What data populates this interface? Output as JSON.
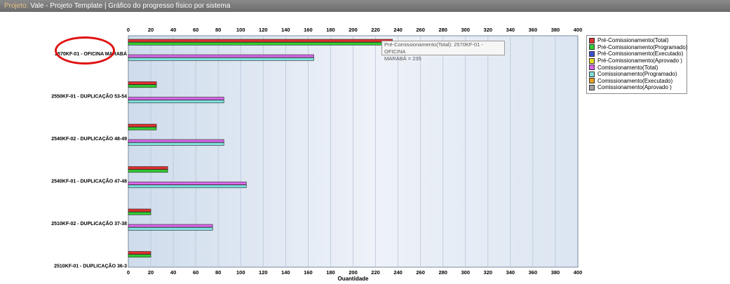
{
  "header": {
    "label": "Projeto:",
    "title": "Vale - Projeto Template | Gráfico do progresso físico por sistema"
  },
  "tooltip": {
    "line1": "Pré-Comissionamento(Total): 2570KF-01 - OFICINA",
    "line2": "MARABÁ = 235"
  },
  "chart_data": {
    "type": "bar",
    "orientation": "horizontal",
    "xlabel": "Quantidade",
    "xlim": [
      0,
      400
    ],
    "xticks": [
      0,
      20,
      40,
      60,
      80,
      100,
      120,
      140,
      160,
      180,
      200,
      220,
      240,
      260,
      280,
      300,
      320,
      340,
      360,
      380,
      400
    ],
    "grid": true,
    "legend_position": "right",
    "categories": [
      "2570KF-01 - OFICINA MARABÁ",
      "2550KF-01 - DUPLICAÇÃO 53-54",
      "2540KF-02 - DUPLICAÇÃO 48-49",
      "2540KF-01 - DUPLICAÇÃO 47-48",
      "2510KF-02 - DUPLICAÇÃO 37-38",
      "2510KF-01 - DUPLICAÇÃO 36-3"
    ],
    "series": [
      {
        "name": "Pré-Comissionamento(Total)",
        "color": "#e03030",
        "values": [
          235,
          25,
          25,
          35,
          20,
          20
        ]
      },
      {
        "name": "Pré-Comissionamento(Programado)",
        "color": "#33cc33",
        "values": [
          235,
          25,
          25,
          35,
          20,
          20
        ]
      },
      {
        "name": "Pré-Comissionamento(Executado)",
        "color": "#3a4fd0",
        "values": [
          0,
          0,
          0,
          0,
          0,
          0
        ]
      },
      {
        "name": "Pré-Comissionamento(Aprovado )",
        "color": "#e8e020",
        "values": [
          0,
          0,
          0,
          0,
          0,
          0
        ]
      },
      {
        "name": "Comissionamento(Total)",
        "color": "#d966e8",
        "values": [
          165,
          85,
          85,
          105,
          75,
          0
        ]
      },
      {
        "name": "Comissionamento(Programado)",
        "color": "#7fe0dc",
        "values": [
          165,
          85,
          85,
          105,
          75,
          0
        ]
      },
      {
        "name": "Comissionamento(Executado)",
        "color": "#e8a020",
        "values": [
          0,
          0,
          0,
          0,
          0,
          0
        ]
      },
      {
        "name": "Comissionamento(Aprovado )",
        "color": "#a0a0a0",
        "values": [
          0,
          0,
          0,
          0,
          0,
          0
        ]
      }
    ]
  }
}
